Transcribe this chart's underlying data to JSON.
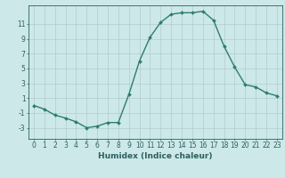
{
  "x": [
    0,
    1,
    2,
    3,
    4,
    5,
    6,
    7,
    8,
    9,
    10,
    11,
    12,
    13,
    14,
    15,
    16,
    17,
    18,
    19,
    20,
    21,
    22,
    23
  ],
  "y": [
    0.0,
    -0.5,
    -1.3,
    -1.7,
    -2.2,
    -3.0,
    -2.8,
    -2.3,
    -2.3,
    1.5,
    6.0,
    9.2,
    11.2,
    12.3,
    12.5,
    12.5,
    12.7,
    11.5,
    8.0,
    5.2,
    2.8,
    2.5,
    1.7,
    1.3
  ],
  "line_color": "#2e7d6e",
  "marker": "D",
  "marker_size": 2.0,
  "bg_color": "#cce8e8",
  "grid_color": "#b0cccc",
  "axis_color": "#2e5f5f",
  "xlabel": "Humidex (Indice chaleur)",
  "xlim": [
    -0.5,
    23.5
  ],
  "ylim": [
    -4.5,
    13.5
  ],
  "yticks": [
    -3,
    -1,
    1,
    3,
    5,
    7,
    9,
    11
  ],
  "xticks": [
    0,
    1,
    2,
    3,
    4,
    5,
    6,
    7,
    8,
    9,
    10,
    11,
    12,
    13,
    14,
    15,
    16,
    17,
    18,
    19,
    20,
    21,
    22,
    23
  ],
  "label_fontsize": 6.5,
  "tick_fontsize": 5.5
}
